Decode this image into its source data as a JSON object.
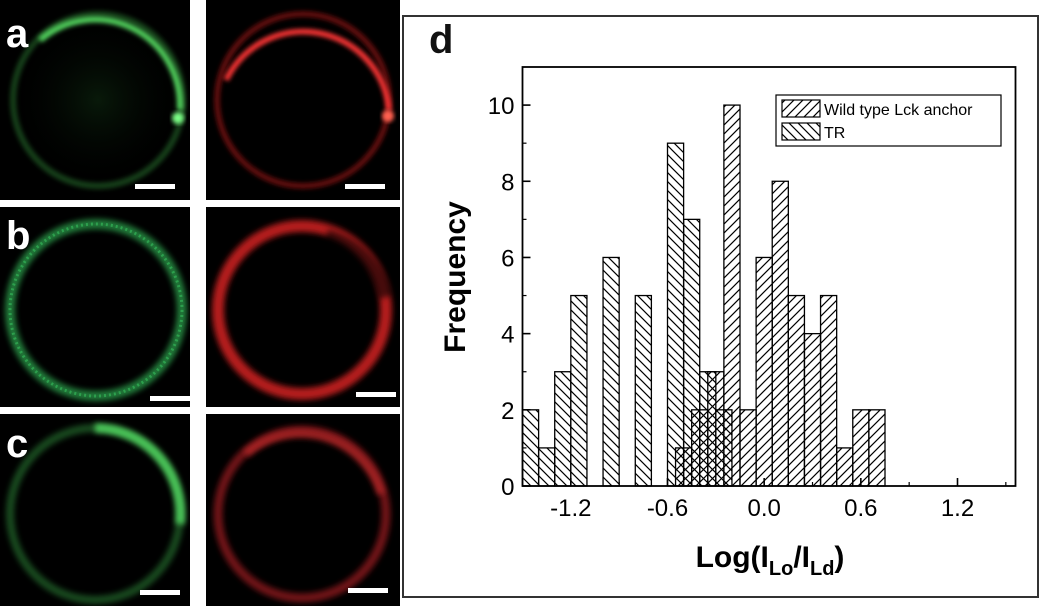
{
  "figure": {
    "panel_labels": [
      "a",
      "b",
      "c",
      "d"
    ],
    "colors": {
      "green_channel": "#3fc04f",
      "red_channel": "#e3242b",
      "scale_bar": "#ffffff",
      "background": "#000000"
    }
  },
  "chart_data": {
    "type": "bar",
    "xlabel": "Log(ILo/ILd)",
    "xlabel_parts": {
      "base": "Log(I",
      "sub1": "Lo",
      "mid": "/I",
      "sub2": "Ld",
      "end": ")"
    },
    "ylabel": "Frequency",
    "xlim": [
      -1.5,
      1.56
    ],
    "ylim": [
      0,
      11
    ],
    "xticks": [
      -1.2,
      -0.6,
      0.0,
      0.6,
      1.2
    ],
    "xtick_labels": [
      "-1.2",
      "-0.6",
      "0.0",
      "0.6",
      "1.2"
    ],
    "yticks": [
      0,
      2,
      4,
      6,
      8,
      10
    ],
    "ytick_labels": [
      "0",
      "2",
      "4",
      "6",
      "8",
      "10"
    ],
    "bin_width": 0.1,
    "legend_position": "top-right",
    "series": [
      {
        "name": "Wild type Lck anchor",
        "hatch": "forward-diagonal",
        "bins": [
          {
            "x0": -0.55,
            "count": 1
          },
          {
            "x0": -0.45,
            "count": 2
          },
          {
            "x0": -0.35,
            "count": 3
          },
          {
            "x0": -0.25,
            "count": 10
          },
          {
            "x0": -0.15,
            "count": 2
          },
          {
            "x0": -0.05,
            "count": 6
          },
          {
            "x0": 0.05,
            "count": 8
          },
          {
            "x0": 0.15,
            "count": 5
          },
          {
            "x0": 0.25,
            "count": 4
          },
          {
            "x0": 0.35,
            "count": 5
          },
          {
            "x0": 0.45,
            "count": 1
          },
          {
            "x0": 0.55,
            "count": 2
          },
          {
            "x0": 0.65,
            "count": 2
          }
        ]
      },
      {
        "name": "TR",
        "hatch": "back-diagonal",
        "bins": [
          {
            "x0": -1.5,
            "count": 2
          },
          {
            "x0": -1.4,
            "count": 1
          },
          {
            "x0": -1.3,
            "count": 3
          },
          {
            "x0": -1.2,
            "count": 5
          },
          {
            "x0": -1.0,
            "count": 6
          },
          {
            "x0": -0.8,
            "count": 5
          },
          {
            "x0": -0.6,
            "count": 9
          },
          {
            "x0": -0.5,
            "count": 7
          },
          {
            "x0": -0.4,
            "count": 3
          },
          {
            "x0": -0.3,
            "count": 2
          }
        ]
      }
    ]
  }
}
